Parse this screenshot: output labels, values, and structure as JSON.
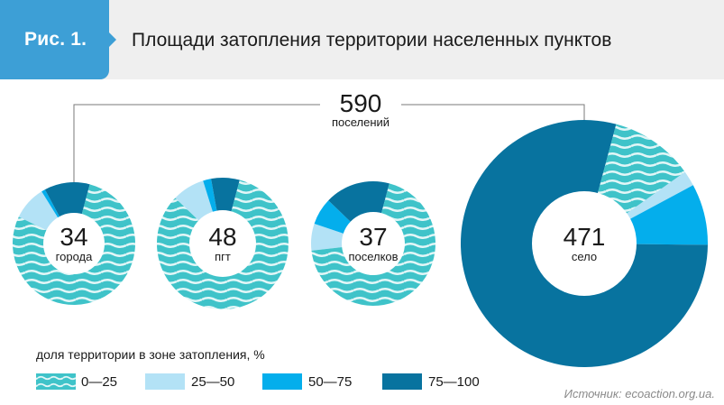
{
  "header": {
    "figure_label": "Рис. 1.",
    "title": "Площади затопления территории населенных пунктов"
  },
  "total": {
    "value": "590",
    "label": "поселений"
  },
  "legend": {
    "title": "доля территории в зоне затопления, %",
    "items": [
      {
        "label": "0—25",
        "color": "#3fc3c9",
        "pattern": "waves"
      },
      {
        "label": "25—50",
        "color": "#b3e2f6"
      },
      {
        "label": "50—75",
        "color": "#04aeec"
      },
      {
        "label": "75—100",
        "color": "#08739f"
      }
    ]
  },
  "source": "Источник: ecoaction.org.ua.",
  "chart_data": {
    "type": "pie",
    "title": "Площади затопления территории населенных пунктов",
    "categories": [
      "0—25",
      "25—50",
      "50—75",
      "75—100"
    ],
    "series": [
      {
        "name": "города",
        "count": 34,
        "values": [
          78,
          9,
          1,
          12
        ]
      },
      {
        "name": "пгт",
        "count": 48,
        "values": [
          83,
          8,
          2,
          7
        ]
      },
      {
        "name": "поселков",
        "count": 37,
        "values": [
          69,
          7,
          7,
          17
        ]
      },
      {
        "name": "село",
        "count": 471,
        "values": [
          11,
          2,
          8,
          79
        ]
      }
    ],
    "total": 590
  }
}
